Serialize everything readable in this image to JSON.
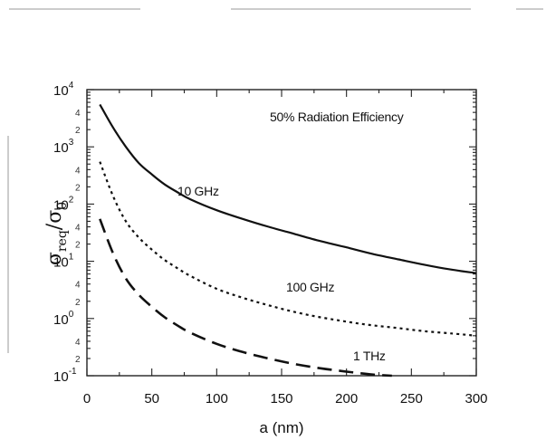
{
  "chart_data": {
    "type": "line",
    "title": "",
    "annotation": "50% Radiation Efficiency",
    "xlabel": "a (nm)",
    "ylabel": {
      "sigma": "σ",
      "sub1": "req",
      "slash": "/",
      "sub2": "0"
    },
    "xlim": [
      0,
      300
    ],
    "ylim": [
      0.1,
      10000
    ],
    "yscale": "log",
    "grid": false,
    "x_ticks": [
      "0",
      "50",
      "100",
      "150",
      "200",
      "250",
      "300"
    ],
    "y_ticks": [
      {
        "base": "10",
        "exp": "-1"
      },
      {
        "base": "10",
        "exp": "0"
      },
      {
        "base": "10",
        "exp": "1"
      },
      {
        "base": "10",
        "exp": "2"
      },
      {
        "base": "10",
        "exp": "3"
      },
      {
        "base": "10",
        "exp": "4"
      }
    ],
    "series": [
      {
        "name": "10 GHz",
        "style": "solid",
        "x": [
          10,
          20,
          30,
          40,
          50,
          60,
          70,
          80,
          100,
          120,
          140,
          160,
          180,
          200,
          220,
          240,
          260,
          280,
          300
        ],
        "y": [
          5500,
          2200,
          1000,
          520,
          330,
          220,
          160,
          120,
          78,
          55,
          40,
          30,
          22.5,
          17.5,
          13.5,
          10.8,
          8.7,
          7.2,
          6.2
        ]
      },
      {
        "name": "100 GHz",
        "style": "dotted",
        "x": [
          10,
          20,
          30,
          40,
          50,
          60,
          70,
          80,
          100,
          120,
          140,
          160,
          180,
          200,
          220,
          240,
          260,
          280,
          300
        ],
        "y": [
          550,
          140,
          50,
          26,
          16,
          10.5,
          7.5,
          5.5,
          3.3,
          2.3,
          1.7,
          1.3,
          1.05,
          0.88,
          0.76,
          0.68,
          0.6,
          0.55,
          0.5
        ]
      },
      {
        "name": "1 THz",
        "style": "dashed",
        "x": [
          10,
          20,
          30,
          40,
          50,
          60,
          70,
          80,
          100,
          120,
          140,
          160,
          180,
          200,
          220,
          235
        ],
        "y": [
          55,
          14,
          5,
          2.6,
          1.6,
          1.05,
          0.75,
          0.56,
          0.36,
          0.26,
          0.2,
          0.16,
          0.135,
          0.118,
          0.105,
          0.1
        ]
      }
    ]
  }
}
